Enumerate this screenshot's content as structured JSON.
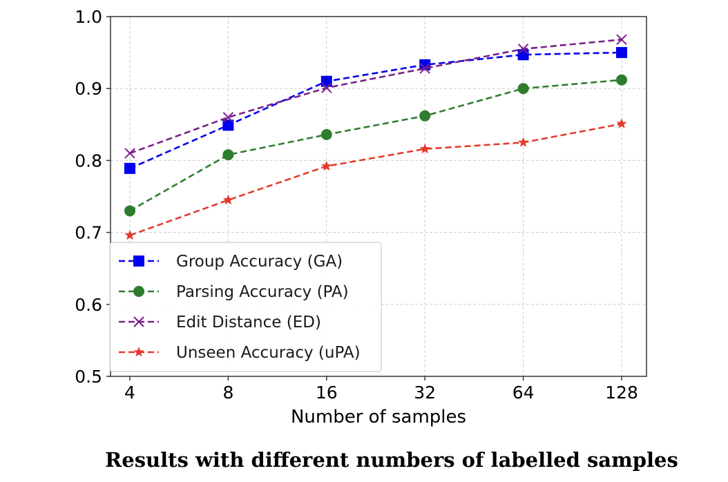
{
  "chart_data": {
    "type": "line",
    "title": "",
    "caption": "Results with different numbers of labelled samples",
    "xlabel": "Number of samples",
    "ylabel": "",
    "categories": [
      "4",
      "8",
      "16",
      "32",
      "64",
      "128"
    ],
    "ylim": [
      0.5,
      1.0
    ],
    "yticks": [
      "0.5",
      "0.6",
      "0.7",
      "0.8",
      "0.9",
      "1.0"
    ],
    "grid": true,
    "legend_position": "lower-left",
    "series": [
      {
        "name": "Group Accuracy (GA)",
        "color": "#0000ee",
        "marker": "square",
        "values": [
          0.789,
          0.849,
          0.91,
          0.933,
          0.947,
          0.95
        ]
      },
      {
        "name": "Parsing Accuracy (PA)",
        "color": "#2e7d2e",
        "marker": "circle",
        "values": [
          0.73,
          0.808,
          0.836,
          0.862,
          0.9,
          0.912
        ]
      },
      {
        "name": "Edit Distance (ED)",
        "color": "#7b1f8a",
        "marker": "x",
        "values": [
          0.81,
          0.86,
          0.901,
          0.928,
          0.955,
          0.968
        ]
      },
      {
        "name": "Unseen Accuracy (uPA)",
        "color": "#e53a2b",
        "marker": "star",
        "values": [
          0.696,
          0.745,
          0.792,
          0.816,
          0.825,
          0.851
        ]
      }
    ]
  }
}
